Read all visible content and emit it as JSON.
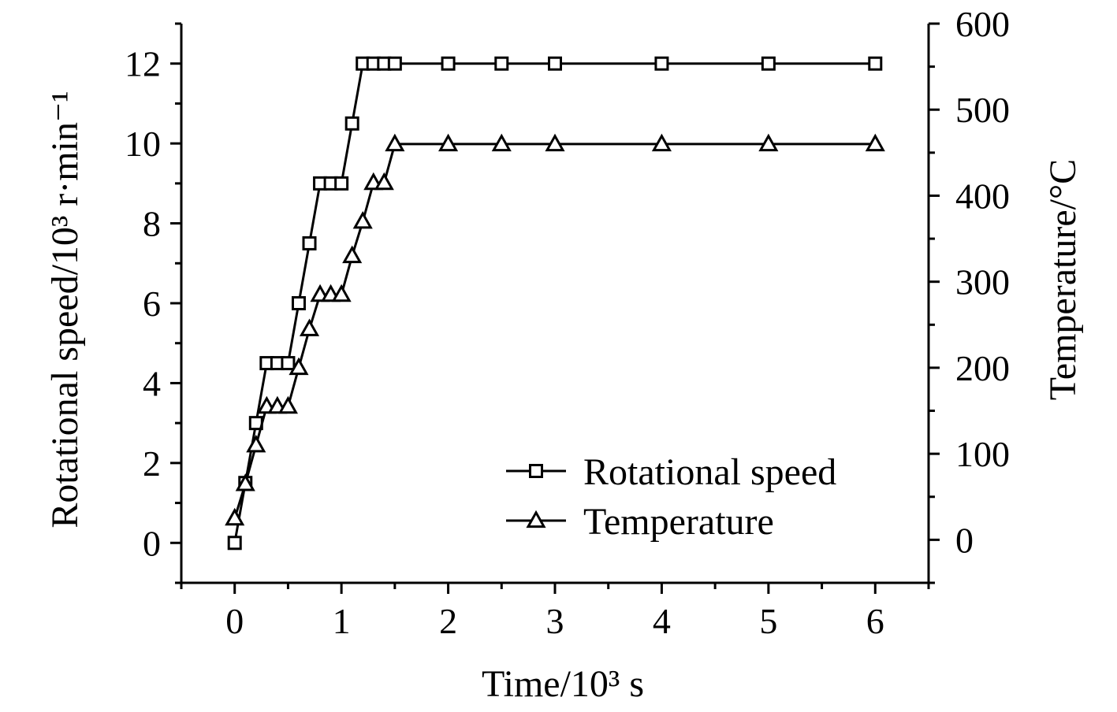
{
  "chart_data": {
    "type": "line",
    "title": "",
    "xlabel": "Time/10³ s",
    "ylabel_left": "Rotational speed/10³ r·min⁻¹",
    "ylabel_right": "Temperature/°C",
    "xlim": [
      -0.5,
      6.5
    ],
    "ylim_left": [
      -1,
      13
    ],
    "ylim_right": [
      -50,
      600
    ],
    "xticks": [
      0,
      1,
      2,
      3,
      4,
      5,
      6
    ],
    "xtick_labels": [
      "0",
      "1",
      "2",
      "3",
      "4",
      "5",
      "6"
    ],
    "yticks_left": [
      0,
      2,
      4,
      6,
      8,
      10,
      12
    ],
    "ytick_labels_left": [
      "0",
      "2",
      "4",
      "6",
      "8",
      "10",
      "12"
    ],
    "yticks_right": [
      0,
      100,
      200,
      300,
      400,
      500,
      600
    ],
    "ytick_labels_right": [
      "0",
      "100",
      "200",
      "300",
      "400",
      "500",
      "600"
    ],
    "grid": false,
    "legend_position": "bottom-right",
    "series": [
      {
        "name": "Rotational speed",
        "axis": "left",
        "marker": "square",
        "x": [
          0,
          0.1,
          0.2,
          0.3,
          0.4,
          0.5,
          0.6,
          0.7,
          0.8,
          0.9,
          1.0,
          1.1,
          1.2,
          1.3,
          1.4,
          1.5,
          2,
          2.5,
          3,
          4,
          5,
          6
        ],
        "values": [
          0,
          1.5,
          3,
          4.5,
          4.5,
          4.5,
          6,
          7.5,
          9,
          9,
          9,
          10.5,
          12,
          12,
          12,
          12,
          12,
          12,
          12,
          12,
          12,
          12
        ]
      },
      {
        "name": "Temperature",
        "axis": "right",
        "marker": "triangle",
        "x": [
          0,
          0.1,
          0.2,
          0.3,
          0.4,
          0.5,
          0.6,
          0.7,
          0.8,
          0.9,
          1.0,
          1.1,
          1.2,
          1.3,
          1.4,
          1.5,
          2,
          2.5,
          3,
          4,
          5,
          6
        ],
        "values": [
          25,
          65,
          110,
          155,
          155,
          155,
          200,
          245,
          285,
          285,
          285,
          330,
          370,
          415,
          415,
          460,
          460,
          460,
          460,
          460,
          460,
          460
        ]
      }
    ]
  }
}
